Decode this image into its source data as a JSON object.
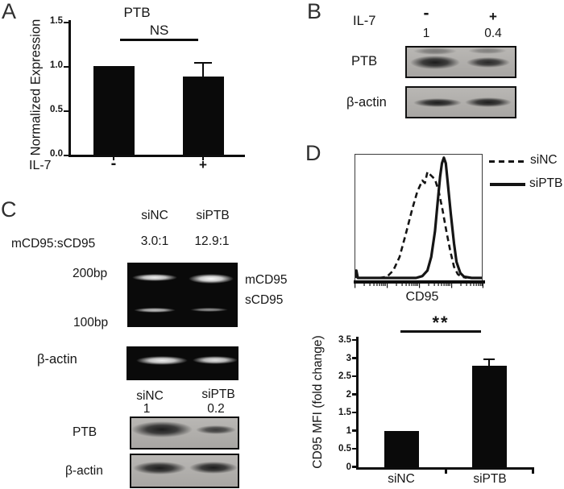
{
  "panel_letters": {
    "a": "A",
    "b": "B",
    "c": "C",
    "d": "D"
  },
  "panel_a": {
    "title": "PTB",
    "annotation": "NS",
    "ylabel": "Normalized Expression",
    "ytick_labels": [
      "1.5",
      "1.0",
      "0.5",
      "0.0"
    ],
    "x_axis_label": "IL-7",
    "categories": [
      "-",
      "+"
    ]
  },
  "panel_b": {
    "condition_label": "IL-7",
    "conditions": [
      "-",
      "+"
    ],
    "quantification": [
      "1",
      "0.4"
    ],
    "blots": [
      {
        "label": "PTB"
      },
      {
        "label": "β-actin"
      }
    ]
  },
  "panel_c": {
    "columns": [
      "siNC",
      "siPTB"
    ],
    "ratio_label": "mCD95:sCD95",
    "ratios": [
      "3.0:1",
      "12.9:1"
    ],
    "marker_200": "200bp",
    "marker_100": "100bp",
    "band_label_m": "mCD95",
    "band_label_s": "sCD95",
    "gel_actin_label": "β-actin",
    "lower_columns": [
      "siNC",
      "siPTB"
    ],
    "lower_quantification": [
      "1",
      "0.2"
    ],
    "lower_blots": [
      {
        "label": "PTB"
      },
      {
        "label": "β-actin"
      }
    ]
  },
  "panel_d": {
    "hist_xlabel": "CD95",
    "legend": [
      {
        "name": "siNC",
        "style": "dashed"
      },
      {
        "name": "siPTB",
        "style": "solid"
      }
    ],
    "bar_ylabel": "CD95 MFI (fold change)",
    "bar_ytick_labels": [
      "3.5",
      "3",
      "2.5",
      "2",
      "1.5",
      "1",
      "0.5",
      "0"
    ],
    "bar_categories": [
      "siNC",
      "siPTB"
    ],
    "annotation": "**"
  },
  "colors": {
    "ink": "#141414",
    "bar_fill": "#0a0a0a",
    "blot_bg": "#b0aeab",
    "gel_bg": "#0a0a0a"
  },
  "chart_data": [
    {
      "id": "ptb-normalized-expression",
      "type": "bar",
      "panel": "A",
      "title": "PTB",
      "xlabel": "IL-7",
      "ylabel": "Normalized Expression",
      "categories": [
        "-",
        "+"
      ],
      "values": [
        1.0,
        0.88
      ],
      "errors": [
        0,
        0.17
      ],
      "ylim": [
        0,
        1.5
      ],
      "yticks": [
        0.0,
        0.5,
        1.0,
        1.5
      ],
      "annotation": "NS",
      "significance": "not significant"
    },
    {
      "id": "cd95-flow-histogram",
      "type": "line",
      "panel": "D",
      "xlabel": "CD95",
      "x_scale": "log",
      "legend_position": "right",
      "series": [
        {
          "name": "siNC",
          "style": "dashed",
          "points": [
            [
              0.19,
              0
            ],
            [
              0.25,
              0.01
            ],
            [
              0.3,
              0.06
            ],
            [
              0.35,
              0.17
            ],
            [
              0.4,
              0.36
            ],
            [
              0.45,
              0.56
            ],
            [
              0.49,
              0.7
            ],
            [
              0.53,
              0.79
            ],
            [
              0.55,
              0.77
            ],
            [
              0.57,
              0.86
            ],
            [
              0.6,
              0.83
            ],
            [
              0.63,
              0.8
            ],
            [
              0.66,
              0.7
            ],
            [
              0.69,
              0.55
            ],
            [
              0.72,
              0.38
            ],
            [
              0.75,
              0.22
            ],
            [
              0.78,
              0.09
            ],
            [
              0.81,
              0.03
            ],
            [
              0.84,
              0.01
            ],
            [
              0.88,
              0
            ]
          ]
        },
        {
          "name": "siPTB",
          "style": "solid",
          "points": [
            [
              0,
              0
            ],
            [
              0.008,
              0.06
            ],
            [
              0.02,
              0
            ],
            [
              0.48,
              0
            ],
            [
              0.53,
              0.015
            ],
            [
              0.57,
              0.06
            ],
            [
              0.6,
              0.17
            ],
            [
              0.63,
              0.38
            ],
            [
              0.65,
              0.6
            ],
            [
              0.67,
              0.82
            ],
            [
              0.685,
              0.93
            ],
            [
              0.7,
              0.975
            ],
            [
              0.715,
              0.93
            ],
            [
              0.73,
              0.78
            ],
            [
              0.755,
              0.52
            ],
            [
              0.78,
              0.28
            ],
            [
              0.8,
              0.13
            ],
            [
              0.83,
              0.04
            ],
            [
              0.86,
              0.01
            ],
            [
              0.92,
              0
            ],
            [
              1,
              0
            ]
          ]
        }
      ]
    },
    {
      "id": "cd95-mfi-fold-change",
      "type": "bar",
      "panel": "D",
      "ylabel": "CD95 MFI (fold change)",
      "categories": [
        "siNC",
        "siPTB"
      ],
      "values": [
        1.0,
        2.8
      ],
      "errors": [
        0,
        0.2
      ],
      "ylim": [
        0,
        3.5
      ],
      "yticks": [
        0,
        0.5,
        1,
        1.5,
        2,
        2.5,
        3,
        3.5
      ],
      "annotation": "**",
      "significance": "p < 0.01"
    }
  ]
}
